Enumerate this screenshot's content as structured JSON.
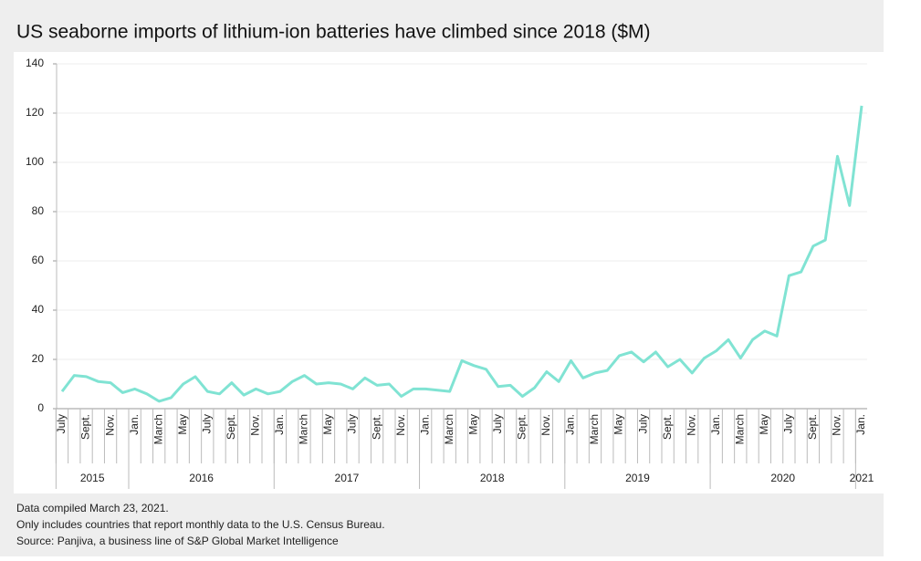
{
  "chart_data": {
    "type": "line",
    "title": "US seaborne imports of lithium-ion batteries have climbed since 2018 ($M)",
    "categories": [
      "July",
      null,
      "Sept.",
      null,
      "Nov.",
      null,
      "Jan.",
      null,
      "March",
      null,
      "May",
      null,
      "July",
      null,
      "Sept.",
      null,
      "Nov.",
      null,
      "Jan.",
      null,
      "March",
      null,
      "May",
      null,
      "July",
      null,
      "Sept.",
      null,
      "Nov.",
      null,
      "Jan.",
      null,
      "March",
      null,
      "May",
      null,
      "July",
      null,
      "Sept.",
      null,
      "Nov.",
      null,
      "Jan.",
      null,
      "March",
      null,
      "May",
      null,
      "July",
      null,
      "Sept.",
      null,
      "Nov.",
      null,
      "Jan.",
      null,
      "March",
      null,
      "May",
      null,
      "July",
      null,
      "Sept.",
      null,
      "Nov.",
      null,
      "Jan."
    ],
    "x_groups": [
      {
        "label": "2015",
        "count": 6
      },
      {
        "label": "2016",
        "count": 12
      },
      {
        "label": "2017",
        "count": 12
      },
      {
        "label": "2018",
        "count": 12
      },
      {
        "label": "2019",
        "count": 12
      },
      {
        "label": "2020",
        "count": 12
      },
      {
        "label": "2021",
        "count": 1
      }
    ],
    "series": [
      {
        "name": "US seaborne imports of lithium-ion batteries",
        "color": "#80e3d3",
        "values": [
          7,
          13.5,
          13,
          11,
          10.5,
          6.5,
          8,
          6,
          3,
          4.5,
          10,
          13,
          7,
          6,
          10.5,
          5.5,
          8,
          6,
          7,
          11,
          13.5,
          10,
          10.5,
          10,
          8,
          12.5,
          9.5,
          10,
          5,
          8,
          8,
          7.5,
          7,
          19.5,
          17.5,
          16,
          9,
          9.5,
          5,
          8.5,
          15,
          11,
          19.5,
          12.5,
          14.5,
          15.5,
          21.5,
          23,
          19,
          23,
          17,
          20,
          14.5,
          20.5,
          23.5,
          28,
          20.5,
          28,
          31.5,
          29.5,
          54,
          55.5,
          66,
          68.5,
          102.5,
          82.5,
          123
        ]
      }
    ],
    "ylim": [
      0,
      140
    ],
    "yticks": [
      0,
      20,
      40,
      60,
      80,
      100,
      120,
      140
    ],
    "grid": true,
    "notes": [
      "Data compiled March 23, 2021.",
      "Only includes countries that report monthly data to the U.S. Census Bureau.",
      "Source: Panjiva, a business line of S&P Global Market Intelligence"
    ]
  }
}
